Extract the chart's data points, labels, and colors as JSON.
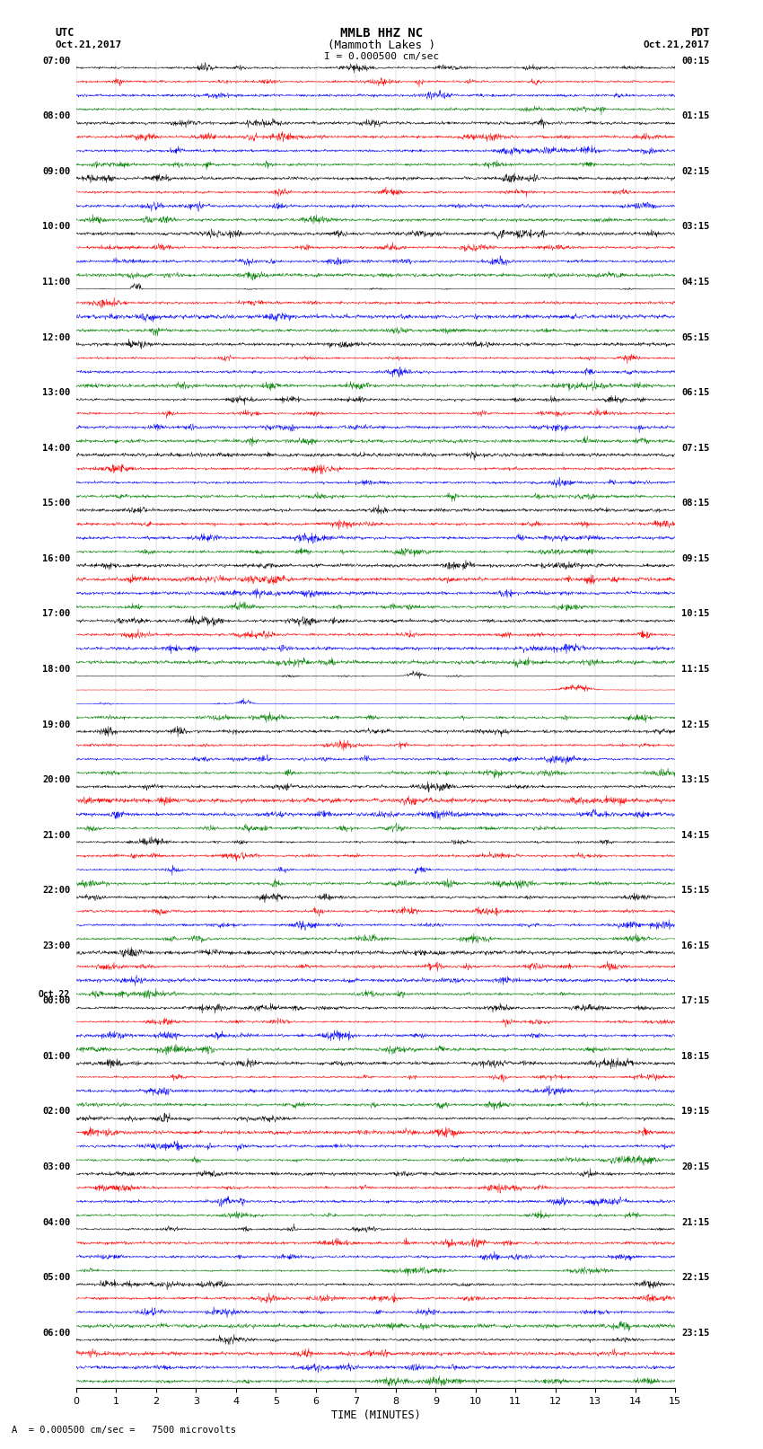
{
  "title_line1": "MMLB HHZ NC",
  "title_line2": "(Mammoth Lakes )",
  "scale_text": "I = 0.000500 cm/sec",
  "bottom_annotation": "= 0.000500 cm/sec =   7500 microvolts",
  "xlabel": "TIME (MINUTES)",
  "utc_label": "UTC",
  "utc_date": "Oct.21,2017",
  "pdt_label": "PDT",
  "pdt_date": "Oct.21,2017",
  "left_hour_labels": [
    "07:00",
    "08:00",
    "09:00",
    "10:00",
    "11:00",
    "12:00",
    "13:00",
    "14:00",
    "15:00",
    "16:00",
    "17:00",
    "18:00",
    "19:00",
    "20:00",
    "21:00",
    "22:00",
    "23:00",
    "Oct.22|00:00",
    "01:00",
    "02:00",
    "03:00",
    "04:00",
    "05:00",
    "06:00"
  ],
  "right_hour_labels": [
    "00:15",
    "01:15",
    "02:15",
    "03:15",
    "04:15",
    "05:15",
    "06:15",
    "07:15",
    "08:15",
    "09:15",
    "10:15",
    "11:15",
    "12:15",
    "13:15",
    "14:15",
    "15:15",
    "16:15",
    "17:15",
    "18:15",
    "19:15",
    "20:15",
    "21:15",
    "22:15",
    "23:15"
  ],
  "trace_colors": [
    "black",
    "red",
    "blue",
    "green"
  ],
  "bg_color": "white",
  "n_hours": 24,
  "traces_per_hour": 4,
  "xmin": 0,
  "xmax": 15,
  "xticks": [
    0,
    1,
    2,
    3,
    4,
    5,
    6,
    7,
    8,
    9,
    10,
    11,
    12,
    13,
    14,
    15
  ],
  "fig_width": 8.5,
  "fig_height": 16.13,
  "dpi": 100
}
